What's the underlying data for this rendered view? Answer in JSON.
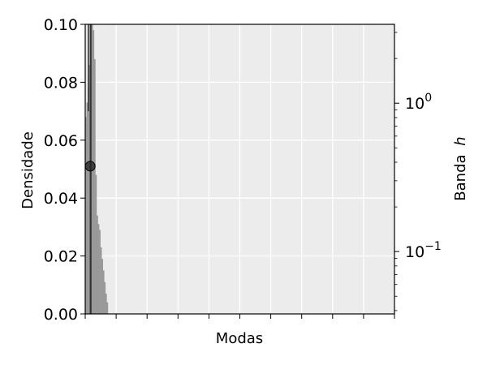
{
  "chart_data": {
    "type": "bar",
    "xlabel": "Modas",
    "ylabel": "Densidade",
    "y2label": "Banda",
    "y2label_italic": "h",
    "ylim": [
      0,
      0.1
    ],
    "y2lim": [
      0.038,
      3.4
    ],
    "y2scale": "log",
    "grid": true,
    "background": "#ececec",
    "yticks": [
      {
        "value": 0.0,
        "label": "0.00"
      },
      {
        "value": 0.02,
        "label": "0.02"
      },
      {
        "value": 0.04,
        "label": "0.04"
      },
      {
        "value": 0.06,
        "label": "0.06"
      },
      {
        "value": 0.08,
        "label": "0.08"
      },
      {
        "value": 0.1,
        "label": "0.10"
      }
    ],
    "y2ticks_major": [
      {
        "value": 1.0,
        "base": "10",
        "exp": "0"
      },
      {
        "value": 0.1,
        "base": "10",
        "exp": "−1"
      }
    ],
    "y2ticks_minor": [
      0.04,
      0.05,
      0.06,
      0.07,
      0.08,
      0.09,
      0.2,
      0.3,
      0.4,
      0.5,
      0.6,
      0.7,
      0.8,
      0.9,
      2.0,
      3.0
    ],
    "xticks_count": 11,
    "histogram": {
      "color": "#999999",
      "values": [
        0.068,
        0.073,
        0.078,
        0.086,
        0.1,
        0.1,
        0.098,
        0.088,
        0.048,
        0.034,
        0.031,
        0.029,
        0.023,
        0.019,
        0.015,
        0.011,
        0.007,
        0.004
      ]
    },
    "mode_line": {
      "bin": 4.3,
      "color": "#333333"
    },
    "band_line": {
      "bin": 2.5,
      "color": "#333333"
    },
    "marker": {
      "bin": 4.0,
      "y": 0.051,
      "color": "#222222"
    }
  }
}
